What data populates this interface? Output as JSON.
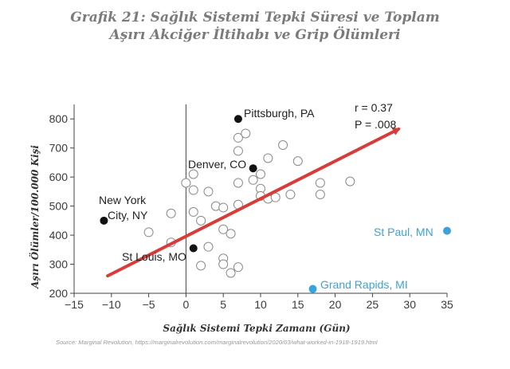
{
  "page": {
    "title_line1": "Grafik 21: Sağlık Sistemi Tepki Süresi ve Toplam",
    "title_line2": "Aşırı Akciğer İltihabı ve Grip Ölümleri",
    "source": "Source: Marginal Revolution, https://marginalrevolution.com/marginalrevolution/2020/03/what-worked-in-1918-1919.html"
  },
  "chart_data": {
    "type": "scatter",
    "title": "",
    "xlabel": "Sağlık Sistemi Tepki Zamanı (Gün)",
    "ylabel": "Aşırı Ölümler/100.000 Kişi",
    "xlim": [
      -15,
      35
    ],
    "ylim": [
      200,
      850
    ],
    "x_ticks": [
      -15,
      -10,
      -5,
      0,
      5,
      10,
      15,
      20,
      25,
      30,
      35
    ],
    "y_ticks": [
      200,
      300,
      400,
      500,
      600,
      700,
      800
    ],
    "grid": false,
    "reference_line_x": 0,
    "stats": {
      "r": "r = 0.37",
      "p": "P = .008"
    },
    "trend_arrow": {
      "from": [
        -10.5,
        260
      ],
      "to": [
        28.5,
        765
      ],
      "color": "#d93a3a"
    },
    "series": [
      {
        "kind": "open",
        "points": [
          [
            -5,
            410
          ],
          [
            -2,
            475
          ],
          [
            -2,
            375
          ],
          [
            0,
            580
          ],
          [
            1,
            610
          ],
          [
            1,
            555
          ],
          [
            1,
            480
          ],
          [
            2,
            450
          ],
          [
            2,
            295
          ],
          [
            3,
            550
          ],
          [
            3,
            360
          ],
          [
            4,
            500
          ],
          [
            5,
            495
          ],
          [
            5,
            420
          ],
          [
            5,
            320
          ],
          [
            5,
            300
          ],
          [
            6,
            405
          ],
          [
            6,
            270
          ],
          [
            7,
            735
          ],
          [
            7,
            690
          ],
          [
            7,
            580
          ],
          [
            7,
            505
          ],
          [
            7,
            290
          ],
          [
            8,
            750
          ],
          [
            9,
            590
          ],
          [
            10,
            610
          ],
          [
            10,
            560
          ],
          [
            10,
            535
          ],
          [
            11,
            665
          ],
          [
            11,
            525
          ],
          [
            12,
            530
          ],
          [
            13,
            710
          ],
          [
            14,
            540
          ],
          [
            15,
            655
          ],
          [
            18,
            580
          ],
          [
            18,
            540
          ],
          [
            22,
            585
          ]
        ]
      },
      {
        "kind": "filled",
        "color": "#111111",
        "points": [
          {
            "x": 7,
            "y": 800,
            "label": "Pittsburgh, PA"
          },
          {
            "x": 9,
            "y": 630,
            "label": "Denver, CO"
          },
          {
            "x": -11,
            "y": 450,
            "label": "New York City, NY"
          },
          {
            "x": 1,
            "y": 355,
            "label": "St Louis, MO"
          }
        ]
      },
      {
        "kind": "filled",
        "color": "#3aa2dd",
        "points": [
          {
            "x": 35,
            "y": 415,
            "label": "St Paul, MN"
          },
          {
            "x": 17,
            "y": 215,
            "label": "Grand Rapids, MI"
          }
        ]
      }
    ],
    "annotations": {
      "pittsburgh": "Pittsburgh, PA",
      "denver": "Denver, CO",
      "newyork_l1": "New York",
      "newyork_l2": "City, NY",
      "stlouis": "St Louis, MO",
      "stpaul": "St Paul, MN",
      "grandrapids": "Grand Rapids, MI"
    }
  }
}
